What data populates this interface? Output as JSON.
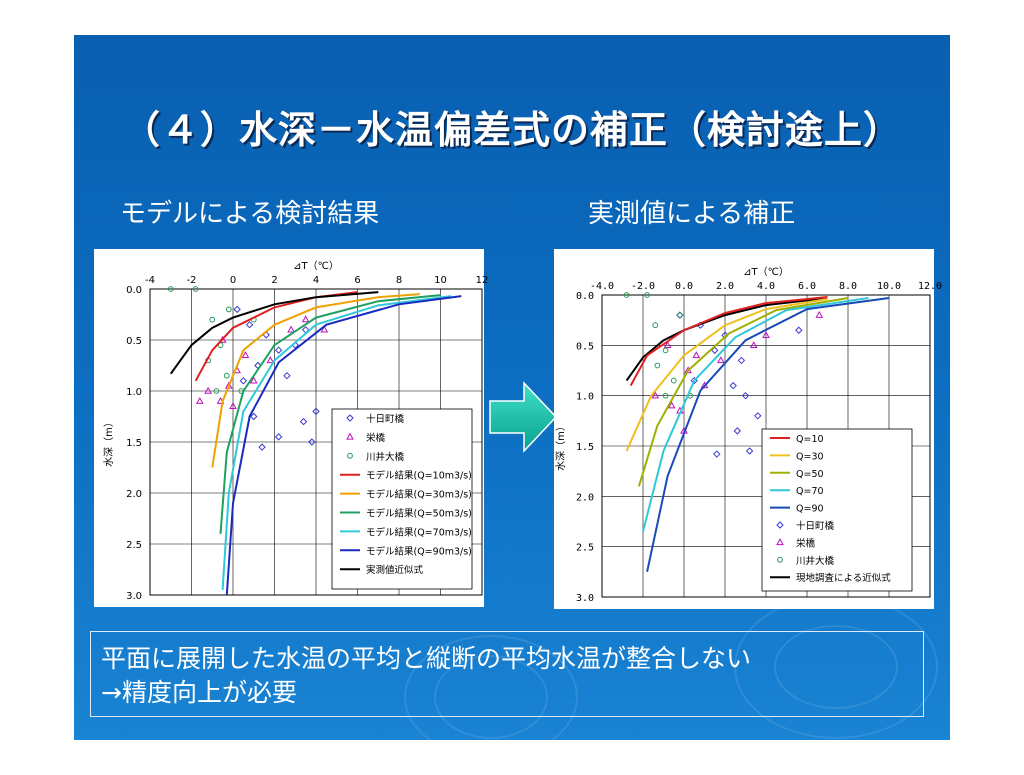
{
  "slide": {
    "title": "（４）水深－水温偏差式の補正（検討途上）",
    "subtitle_left": "モデルによる検討結果",
    "subtitle_right": "実測値による補正",
    "note_line1": "平面に展開した水温の平均と縦断の平均水温が整合しない",
    "note_line2": "→精度向上が必要"
  },
  "chart_data": [
    {
      "type": "scatter",
      "xlabel": "⊿T（℃）",
      "ylabel": "水深（m）",
      "xlim": [
        -4,
        12
      ],
      "ylim": [
        3.0,
        0.0
      ],
      "x_ticks": [
        "-4",
        "-2",
        "0",
        "2",
        "4",
        "6",
        "8",
        "10",
        "12"
      ],
      "y_ticks": [
        "0.0",
        "0.5",
        "1.0",
        "1.5",
        "2.0",
        "2.5",
        "3.0"
      ],
      "x_axis_position": "top",
      "grid": true,
      "legend_position": "inside-right",
      "markers": [
        {
          "name": "十日町橋",
          "marker": "diamond",
          "color": "#3a3ad0",
          "points": [
            [
              0.2,
              0.2
            ],
            [
              0.8,
              0.35
            ],
            [
              1.6,
              0.45
            ],
            [
              2.2,
              0.6
            ],
            [
              3.0,
              0.55
            ],
            [
              1.2,
              0.75
            ],
            [
              0.5,
              0.9
            ],
            [
              2.6,
              0.85
            ],
            [
              3.5,
              0.4
            ],
            [
              1.0,
              1.25
            ],
            [
              3.4,
              1.3
            ],
            [
              2.2,
              1.45
            ],
            [
              3.8,
              1.5
            ],
            [
              1.4,
              1.55
            ],
            [
              4.0,
              1.2
            ]
          ]
        },
        {
          "name": "栄橋",
          "marker": "triangle",
          "color": "#c010c0",
          "points": [
            [
              -0.5,
              0.5
            ],
            [
              0.2,
              0.8
            ],
            [
              -1.2,
              1.0
            ],
            [
              -0.6,
              1.1
            ],
            [
              0.6,
              0.65
            ],
            [
              1.0,
              0.9
            ],
            [
              1.8,
              0.7
            ],
            [
              2.8,
              0.4
            ],
            [
              -1.6,
              1.1
            ],
            [
              0.0,
              1.15
            ],
            [
              3.5,
              0.3
            ],
            [
              4.4,
              0.4
            ],
            [
              -0.2,
              0.95
            ]
          ]
        },
        {
          "name": "川井大橋",
          "marker": "circle",
          "color": "#2a9a5a",
          "points": [
            [
              -3.0,
              0.0
            ],
            [
              -1.8,
              0.0
            ],
            [
              -1.0,
              0.3
            ],
            [
              -0.6,
              0.55
            ],
            [
              -1.2,
              0.7
            ],
            [
              -0.3,
              0.85
            ],
            [
              0.4,
              1.0
            ],
            [
              -0.8,
              1.0
            ],
            [
              1.0,
              0.3
            ],
            [
              -0.2,
              0.2
            ]
          ]
        }
      ],
      "series": [
        {
          "name": "モデル結果(Q=10m3/s)",
          "color": "#e02020",
          "points": [
            [
              -1.8,
              0.9
            ],
            [
              -1.0,
              0.6
            ],
            [
              0.0,
              0.38
            ],
            [
              2.0,
              0.18
            ],
            [
              4.0,
              0.08
            ],
            [
              6.0,
              0.03
            ]
          ]
        },
        {
          "name": "モデル結果(Q=30m3/s)",
          "color": "#f0a000",
          "points": [
            [
              -1.0,
              1.75
            ],
            [
              -0.5,
              1.1
            ],
            [
              0.5,
              0.6
            ],
            [
              2.0,
              0.35
            ],
            [
              4.0,
              0.18
            ],
            [
              7.0,
              0.08
            ],
            [
              9.0,
              0.05
            ]
          ]
        },
        {
          "name": "モデル結果(Q=50m3/s)",
          "color": "#20a060",
          "points": [
            [
              -0.6,
              2.4
            ],
            [
              -0.3,
              1.6
            ],
            [
              0.5,
              1.0
            ],
            [
              2.0,
              0.55
            ],
            [
              4.0,
              0.28
            ],
            [
              7.0,
              0.12
            ],
            [
              10.0,
              0.06
            ]
          ]
        },
        {
          "name": "モデル結果(Q=70m3/s)",
          "color": "#30c8d8",
          "points": [
            [
              -0.5,
              2.95
            ],
            [
              -0.2,
              2.0
            ],
            [
              0.5,
              1.2
            ],
            [
              2.0,
              0.7
            ],
            [
              4.0,
              0.35
            ],
            [
              7.0,
              0.16
            ],
            [
              10.5,
              0.07
            ]
          ]
        },
        {
          "name": "モデル結果(Q=90m3/s)",
          "color": "#1a2ac0",
          "points": [
            [
              -0.3,
              3.0
            ],
            [
              0.0,
              2.1
            ],
            [
              0.8,
              1.25
            ],
            [
              2.2,
              0.72
            ],
            [
              4.5,
              0.35
            ],
            [
              8.0,
              0.15
            ],
            [
              11.0,
              0.07
            ]
          ]
        },
        {
          "name": "実測値近似式",
          "color": "#000000",
          "points": [
            [
              -3.0,
              0.83
            ],
            [
              -2.0,
              0.55
            ],
            [
              -1.0,
              0.38
            ],
            [
              0.0,
              0.28
            ],
            [
              2.0,
              0.15
            ],
            [
              4.0,
              0.08
            ],
            [
              7.0,
              0.03
            ]
          ]
        }
      ]
    },
    {
      "type": "scatter",
      "xlabel": "⊿T（℃）",
      "ylabel": "水深（m）",
      "xlim": [
        -4.0,
        12.0
      ],
      "ylim": [
        3.0,
        0.0
      ],
      "x_ticks": [
        "-4.0",
        "-2.0",
        "0.0",
        "2.0",
        "4.0",
        "6.0",
        "8.0",
        "10.0",
        "12.0"
      ],
      "y_ticks": [
        "0.0",
        "0.5",
        "1.0",
        "1.5",
        "2.0",
        "2.5",
        "3.0"
      ],
      "x_axis_position": "top",
      "grid": true,
      "legend_position": "bottom-right",
      "series": [
        {
          "name": "Q=10",
          "color": "#e02020",
          "points": [
            [
              -2.6,
              0.9
            ],
            [
              -1.8,
              0.6
            ],
            [
              0.0,
              0.35
            ],
            [
              2.0,
              0.18
            ],
            [
              4.0,
              0.08
            ],
            [
              7.0,
              0.02
            ]
          ]
        },
        {
          "name": "Q=30",
          "color": "#f0c020",
          "points": [
            [
              -2.8,
              1.55
            ],
            [
              -1.6,
              1.0
            ],
            [
              0.0,
              0.6
            ],
            [
              2.0,
              0.3
            ],
            [
              4.0,
              0.14
            ],
            [
              7.0,
              0.04
            ]
          ]
        },
        {
          "name": "Q=50",
          "color": "#a0b000",
          "points": [
            [
              -2.2,
              1.9
            ],
            [
              -1.3,
              1.3
            ],
            [
              0.2,
              0.75
            ],
            [
              2.2,
              0.38
            ],
            [
              4.5,
              0.15
            ],
            [
              8.0,
              0.03
            ]
          ]
        },
        {
          "name": "Q=70",
          "color": "#30c8d8",
          "points": [
            [
              -2.0,
              2.35
            ],
            [
              -1.0,
              1.55
            ],
            [
              0.5,
              0.85
            ],
            [
              2.5,
              0.42
            ],
            [
              5.0,
              0.15
            ],
            [
              9.0,
              0.03
            ]
          ]
        },
        {
          "name": "Q=90",
          "color": "#1a4ab8",
          "points": [
            [
              -1.8,
              2.75
            ],
            [
              -0.8,
              1.8
            ],
            [
              0.8,
              0.95
            ],
            [
              3.0,
              0.45
            ],
            [
              6.0,
              0.14
            ],
            [
              10.0,
              0.03
            ]
          ]
        }
      ],
      "markers": [
        {
          "name": "十日町橋",
          "marker": "diamond",
          "color": "#3a3ad0",
          "points": [
            [
              -0.2,
              0.2
            ],
            [
              0.8,
              0.3
            ],
            [
              1.5,
              0.55
            ],
            [
              2.0,
              0.4
            ],
            [
              2.8,
              0.65
            ],
            [
              0.5,
              0.85
            ],
            [
              2.4,
              0.9
            ],
            [
              3.0,
              1.0
            ],
            [
              2.6,
              1.35
            ],
            [
              1.6,
              1.58
            ],
            [
              3.2,
              1.55
            ],
            [
              3.6,
              1.2
            ],
            [
              5.6,
              0.35
            ]
          ]
        },
        {
          "name": "栄橋",
          "marker": "triangle",
          "color": "#c010c0",
          "points": [
            [
              -0.8,
              0.5
            ],
            [
              0.2,
              0.75
            ],
            [
              -1.4,
              1.0
            ],
            [
              -0.6,
              1.1
            ],
            [
              0.6,
              0.6
            ],
            [
              1.0,
              0.9
            ],
            [
              1.8,
              0.65
            ],
            [
              3.4,
              0.5
            ],
            [
              -0.2,
              1.15
            ],
            [
              0.0,
              1.35
            ],
            [
              4.0,
              0.4
            ],
            [
              6.6,
              0.2
            ]
          ]
        },
        {
          "name": "川井大橋",
          "marker": "circle",
          "color": "#2a9a5a",
          "points": [
            [
              -2.8,
              0.0
            ],
            [
              -1.8,
              0.0
            ],
            [
              -1.4,
              0.3
            ],
            [
              -0.9,
              0.55
            ],
            [
              -1.3,
              0.7
            ],
            [
              -0.5,
              0.85
            ],
            [
              0.3,
              1.0
            ],
            [
              -0.9,
              1.0
            ],
            [
              -0.2,
              0.2
            ]
          ]
        },
        {
          "name": "現地調査による近似式",
          "marker": "line",
          "color": "#000000",
          "points": [
            [
              -2.8,
              0.85
            ],
            [
              -2.0,
              0.62
            ],
            [
              -1.0,
              0.45
            ],
            [
              0.0,
              0.35
            ],
            [
              2.0,
              0.2
            ],
            [
              4.0,
              0.1
            ],
            [
              7.0,
              0.03
            ]
          ]
        }
      ]
    }
  ]
}
